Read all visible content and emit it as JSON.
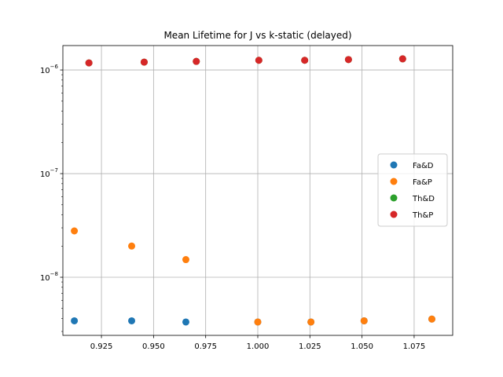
{
  "chart_data": {
    "type": "scatter",
    "title": "Mean Lifetime for J vs k-static (delayed)",
    "xlabel": "",
    "ylabel": "",
    "xlim": [
      0.9065,
      1.0935
    ],
    "ylim": [
      2.75e-09,
      1.72e-06
    ],
    "yscale": "log",
    "grid": true,
    "legend_position": "center-right",
    "x_ticks": [
      0.925,
      0.95,
      0.975,
      1.0,
      1.025,
      1.05,
      1.075
    ],
    "x_tick_labels": [
      "0.925",
      "0.950",
      "0.975",
      "1.000",
      "1.025",
      "1.050",
      "1.075"
    ],
    "y_ticks": [
      1e-08,
      1e-07,
      1e-06
    ],
    "y_tick_labels": [
      {
        "base": "10",
        "exp": "−8"
      },
      {
        "base": "10",
        "exp": "−7"
      },
      {
        "base": "10",
        "exp": "−6"
      }
    ],
    "series": [
      {
        "name": "Fa&D",
        "color": "#1f77b4",
        "x": [
          0.912,
          0.9395,
          0.9655,
          1.0,
          1.0255,
          1.051,
          1.0835
        ],
        "y": [
          3.8e-09,
          3.8e-09,
          3.7e-09,
          3.7e-09,
          3.7e-09,
          3.8e-09,
          3.95e-09
        ]
      },
      {
        "name": "Fa&P",
        "color": "#ff7f0e",
        "x": [
          0.912,
          0.9395,
          0.9655,
          1.0,
          1.0255,
          1.051,
          1.0835
        ],
        "y": [
          2.8e-08,
          2e-08,
          1.48e-08,
          3.7e-09,
          3.7e-09,
          3.8e-09,
          3.95e-09
        ]
      },
      {
        "name": "Th&D",
        "color": "#2ca02c",
        "x": [
          0.919,
          0.9455,
          0.9705,
          1.0005,
          1.0225,
          1.0435,
          1.0695
        ],
        "y": [
          1.17e-06,
          1.19e-06,
          1.21e-06,
          1.24e-06,
          1.24e-06,
          1.26e-06,
          1.28e-06
        ]
      },
      {
        "name": "Th&P",
        "color": "#d62728",
        "x": [
          0.919,
          0.9455,
          0.9705,
          1.0005,
          1.0225,
          1.0435,
          1.0695
        ],
        "y": [
          1.17e-06,
          1.19e-06,
          1.21e-06,
          1.24e-06,
          1.24e-06,
          1.26e-06,
          1.28e-06
        ]
      }
    ]
  }
}
